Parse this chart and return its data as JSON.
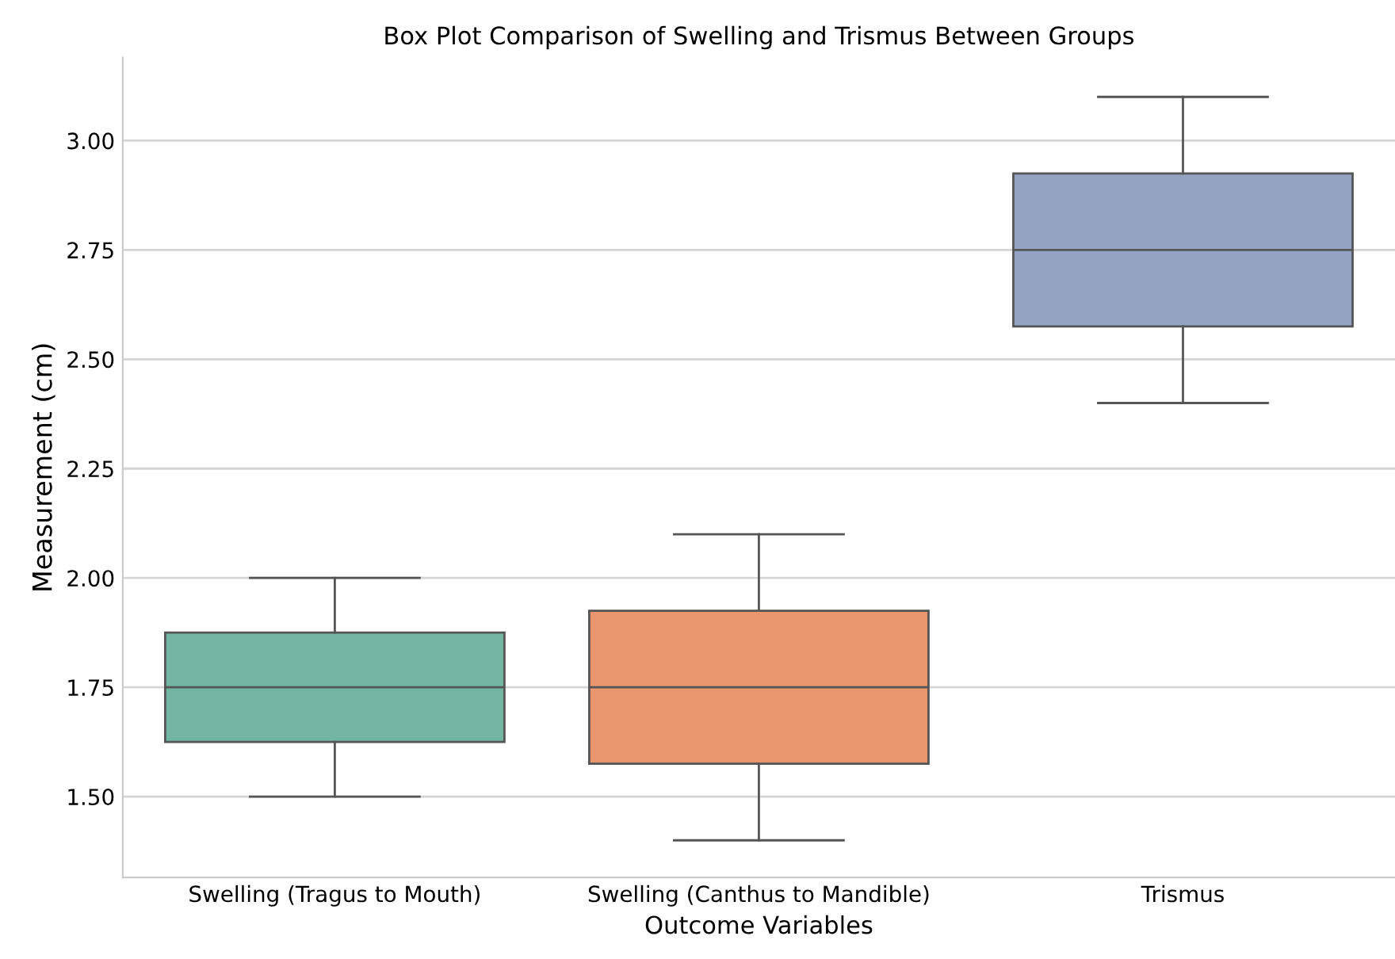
{
  "chart_data": {
    "type": "box",
    "title": "Box Plot Comparison of Swelling and Trismus Between Groups",
    "xlabel": "Outcome Variables",
    "ylabel": "Measurement (cm)",
    "categories": [
      "Swelling (Tragus to Mouth)",
      "Swelling (Canthus to Mandible)",
      "Trismus"
    ],
    "colors": [
      "#72b6a1",
      "#e9966f",
      "#95a3c3"
    ],
    "boxes": [
      {
        "low": 1.5,
        "q1": 1.625,
        "median": 1.75,
        "q3": 1.875,
        "high": 2.0
      },
      {
        "low": 1.4,
        "q1": 1.575,
        "median": 1.75,
        "q3": 1.925,
        "high": 2.1
      },
      {
        "low": 2.4,
        "q1": 2.575,
        "median": 2.75,
        "q3": 2.925,
        "high": 3.1
      }
    ],
    "ylim": [
      1.315,
      3.19
    ],
    "yticks": [
      {
        "value": 1.5,
        "label": "1.50"
      },
      {
        "value": 1.75,
        "label": "1.75"
      },
      {
        "value": 2.0,
        "label": "2.00"
      },
      {
        "value": 2.25,
        "label": "2.25"
      },
      {
        "value": 2.5,
        "label": "2.50"
      },
      {
        "value": 2.75,
        "label": "2.75"
      },
      {
        "value": 3.0,
        "label": "3.00"
      }
    ],
    "grid": "y"
  }
}
